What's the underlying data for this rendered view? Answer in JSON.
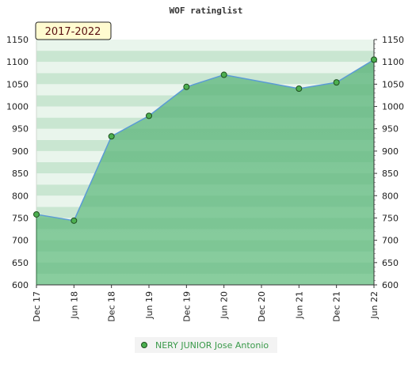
{
  "chart_data": {
    "type": "area",
    "title": "WOF ratinglist",
    "period_badge": "2017-2022",
    "x_categories": [
      "Dec 17",
      "Jun 18",
      "Dec 18",
      "Jun 19",
      "Dec 19",
      "Jun 20",
      "Dec 20",
      "Jun 21",
      "Dec 21",
      "Jun 22"
    ],
    "ylim": [
      600,
      1150
    ],
    "y_ticks": [
      600,
      650,
      700,
      750,
      800,
      850,
      900,
      950,
      1000,
      1050,
      1100,
      1150
    ],
    "series": [
      {
        "name": "NERY JUNIOR Jose Antonio",
        "points": [
          {
            "x": "Dec 17",
            "y": 758
          },
          {
            "x": "Jun 18",
            "y": 744
          },
          {
            "x": "Dec 18",
            "y": 933
          },
          {
            "x": "Jun 19",
            "y": 979
          },
          {
            "x": "Dec 19",
            "y": 1044
          },
          {
            "x": "Jun 20",
            "y": 1071
          },
          {
            "x": "Jun 21",
            "y": 1040
          },
          {
            "x": "Dec 21",
            "y": 1054
          },
          {
            "x": "Jun 22",
            "y": 1105
          }
        ]
      }
    ],
    "grid": true,
    "legend_position": "bottom-center",
    "colors": {
      "line": "#5b9bd5",
      "marker_fill": "#4caf50",
      "marker_stroke": "#1f4f1f",
      "area_fill": "#7cc494",
      "band_light": "#e9f5ec",
      "band_mid": "#c9e6d1",
      "legend_text": "#3a9a4a",
      "badge_bg": "#fffbd0"
    }
  }
}
